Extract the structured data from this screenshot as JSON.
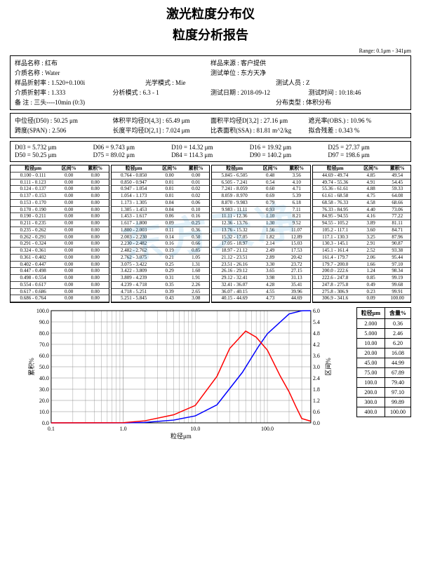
{
  "titles": {
    "main": "激光粒度分布仪",
    "sub": "粒度分析报告",
    "range": "Range: 0.1μm - 341μm"
  },
  "info1": {
    "r1": [
      "样品名称 : 红布",
      "样品来源 : 客户提供"
    ],
    "r2": [
      "介质名称 : Water",
      "测试单位 : 东方天净"
    ],
    "r3": [
      "样品折射率 : 1.520+0.100i",
      "光学模式 : Mie",
      "测试人员 : Z"
    ],
    "r4": [
      "介质折射率 : 1.333",
      "分析模式 : 6.3 - 1",
      "测试日期 : 2018-09-12",
      "测试时间 : 10:18:46"
    ],
    "r5": [
      "备    注 :   三头----10min  (0:3)",
      "分布类型 : 体积分布"
    ]
  },
  "info2": {
    "r1": [
      "中位径(D50) : 50.25    μm",
      "体积平均径D[4,3] : 65.49    μm",
      "面积平均径D[3,2] : 27.16    μm",
      "遮光率(OBS.) : 10.96 %"
    ],
    "r2": [
      "跨度(SPAN) : 2.506",
      "长度平均径D[2,1] : 7.024    μm",
      "比表面积(SSA) : 81.81  m^2/kg",
      "拟合残差 :  0.343  %"
    ]
  },
  "info3": {
    "r1": [
      "D03 = 5.732    μm",
      "D06 = 9.743    μm",
      "D10 = 14.32    μm",
      "D16 = 19.92    μm",
      "D25 = 27.37    μm"
    ],
    "r2": [
      "D50 = 50.25    μm",
      "D75 = 89.02    μm",
      "D84 = 114.3    μm",
      "D90 = 140.2    μm",
      "D97 = 198.6    μm"
    ]
  },
  "dist_headers": [
    "粒径μm",
    "区间%",
    "累积%"
  ],
  "dist_cols": [
    [
      [
        "0.100 - 0.111",
        "0.00",
        "0.00"
      ],
      [
        "0.111 - 0.123",
        "0.00",
        "0.00"
      ],
      [
        "0.124 - 0.137",
        "0.00",
        "0.00"
      ],
      [
        "0.137 - 0.153",
        "0.00",
        "0.00"
      ],
      [
        "0.153 - 0.170",
        "0.00",
        "0.00"
      ],
      [
        "0.170 - 0.190",
        "0.00",
        "0.00"
      ],
      [
        "0.190 - 0.211",
        "0.00",
        "0.00"
      ],
      [
        "0.211 - 0.235",
        "0.00",
        "0.00"
      ],
      [
        "0.235 - 0.262",
        "0.00",
        "0.00"
      ],
      [
        "0.262 - 0.291",
        "0.00",
        "0.00"
      ],
      [
        "0.291 - 0.324",
        "0.00",
        "0.00"
      ],
      [
        "0.324 - 0.361",
        "0.00",
        "0.00"
      ],
      [
        "0.361 - 0.402",
        "0.00",
        "0.00"
      ],
      [
        "0.402 - 0.447",
        "0.00",
        "0.00"
      ],
      [
        "0.447 - 0.498",
        "0.00",
        "0.00"
      ],
      [
        "0.498 - 0.554",
        "0.00",
        "0.00"
      ],
      [
        "0.554 - 0.617",
        "0.00",
        "0.00"
      ],
      [
        "0.617 - 0.686",
        "0.00",
        "0.00"
      ],
      [
        "0.686 - 0.764",
        "0.00",
        "0.00"
      ]
    ],
    [
      [
        "0.764 - 0.850",
        "0.00",
        "0.00"
      ],
      [
        "0.850 - 0.947",
        "0.01",
        "0.01"
      ],
      [
        "0.947 - 1.054",
        "0.01",
        "0.02"
      ],
      [
        "1.054 - 1.173",
        "0.01",
        "0.02"
      ],
      [
        "1.173 - 1.305",
        "0.04",
        "0.06"
      ],
      [
        "1.305 - 1.453",
        "0.04",
        "0.10"
      ],
      [
        "1.453 - 1.617",
        "0.06",
        "0.16"
      ],
      [
        "1.617 - 1.800",
        "0.09",
        "0.25"
      ],
      [
        "1.800 - 2.003",
        "0.11",
        "0.36"
      ],
      [
        "2.003 - 2.230",
        "0.14",
        "0.50"
      ],
      [
        "2.230 - 2.482",
        "0.16",
        "0.66"
      ],
      [
        "2.482 - 2.762",
        "0.19",
        "0.85"
      ],
      [
        "2.762 - 3.075",
        "0.21",
        "1.05"
      ],
      [
        "3.075 - 3.422",
        "0.25",
        "1.31"
      ],
      [
        "3.422 - 3.809",
        "0.29",
        "1.60"
      ],
      [
        "3.809 - 4.239",
        "0.31",
        "1.91"
      ],
      [
        "4.239 - 4.718",
        "0.35",
        "2.26"
      ],
      [
        "4.718 - 5.251",
        "0.39",
        "2.65"
      ],
      [
        "5.251 - 5.845",
        "0.43",
        "3.08"
      ]
    ],
    [
      [
        "5.845 - 6.505",
        "0.48",
        "3.56"
      ],
      [
        "6.505 - 7.241",
        "0.54",
        "4.10"
      ],
      [
        "7.241 - 8.059",
        "0.60",
        "4.71"
      ],
      [
        "8.059 - 8.970",
        "0.69",
        "5.39"
      ],
      [
        "8.870 - 9.983",
        "0.79",
        "6.18"
      ],
      [
        "9.983 - 11.11",
        "0.93",
        "7.11"
      ],
      [
        "11.11 - 12.36",
        "1.10",
        "8.21"
      ],
      [
        "12.36 - 13.76",
        "1.30",
        "9.52"
      ],
      [
        "13.76 - 15.32",
        "1.56",
        "11.07"
      ],
      [
        "15.32 - 17.05",
        "1.82",
        "12.89"
      ],
      [
        "17.05 - 18.97",
        "2.14",
        "15.03"
      ],
      [
        "18.97 - 21.12",
        "2.49",
        "17.53"
      ],
      [
        "21.12 - 23.51",
        "2.89",
        "20.42"
      ],
      [
        "23.51 - 26.16",
        "3.30",
        "23.72"
      ],
      [
        "26.16 - 29.12",
        "3.65",
        "27.15"
      ],
      [
        "29.12 - 32.41",
        "3.98",
        "31.13"
      ],
      [
        "32.41 - 36.07",
        "4.28",
        "35.41"
      ],
      [
        "36.07 - 40.15",
        "4.55",
        "39.96"
      ],
      [
        "40.15 - 44.69",
        "4.73",
        "44.69"
      ]
    ],
    [
      [
        "44.69 - 49.74",
        "4.85",
        "49.54"
      ],
      [
        "49.74 - 55.36",
        "4.91",
        "54.45"
      ],
      [
        "55.36 - 61.61",
        "4.88",
        "59.33"
      ],
      [
        "61.61 - 68.58",
        "4.75",
        "64.08"
      ],
      [
        "68.58 - 76.33",
        "4.58",
        "68.66"
      ],
      [
        "76.33 - 84.95",
        "4.40",
        "73.06"
      ],
      [
        "84.95 - 94.55",
        "4.16",
        "77.22"
      ],
      [
        "94.55 - 105.2",
        "3.89",
        "81.11"
      ],
      [
        "105.2 - 117.1",
        "3.60",
        "84.71"
      ],
      [
        "117.1 - 130.3",
        "3.25",
        "87.96"
      ],
      [
        "130.3 - 145.1",
        "2.91",
        "90.87"
      ],
      [
        "145.1 - 161.4",
        "2.52",
        "93.38"
      ],
      [
        "161.4 - 179.7",
        "2.06",
        "95.44"
      ],
      [
        "179.7 - 200.0",
        "1.66",
        "97.10"
      ],
      [
        "200.0 - 222.6",
        "1.24",
        "98.34"
      ],
      [
        "222.6 - 247.8",
        "0.85",
        "99.19"
      ],
      [
        "247.8 - 275.8",
        "0.49",
        "99.68"
      ],
      [
        "275.8 - 306.9",
        "0.23",
        "99.91"
      ],
      [
        "306.9 - 341.6",
        "0.09",
        "100.00"
      ]
    ]
  ],
  "chart": {
    "xlabel": "粒径μm",
    "ylabel_left": "累积%",
    "ylabel_right": "区间%",
    "xticks": [
      "0.1",
      "1.0",
      "10.0",
      "100.0"
    ],
    "ylticks": [
      0,
      10,
      20,
      30,
      40,
      50,
      60,
      70,
      80,
      90,
      100
    ],
    "yrticks": [
      0,
      0.6,
      1.2,
      1.8,
      2.4,
      3.0,
      3.6,
      4.2,
      4.8,
      5.4,
      6.0
    ],
    "cum_color": "#0000ff",
    "dist_color": "#ff0000",
    "grid_color": "#888",
    "cum_curve": [
      [
        0.1,
        0
      ],
      [
        1,
        0.01
      ],
      [
        2,
        0.36
      ],
      [
        5,
        2.46
      ],
      [
        10,
        6.2
      ],
      [
        20,
        16.08
      ],
      [
        45,
        44.99
      ],
      [
        75,
        67.89
      ],
      [
        100,
        79.4
      ],
      [
        200,
        97.1
      ],
      [
        300,
        99.89
      ],
      [
        400,
        100
      ]
    ],
    "dist_curve": [
      [
        0.1,
        0
      ],
      [
        1,
        0.01
      ],
      [
        2,
        0.11
      ],
      [
        5,
        0.43
      ],
      [
        10,
        0.93
      ],
      [
        20,
        2.49
      ],
      [
        30,
        3.98
      ],
      [
        50,
        4.91
      ],
      [
        70,
        4.58
      ],
      [
        100,
        3.89
      ],
      [
        150,
        2.52
      ],
      [
        200,
        1.66
      ],
      [
        250,
        0.85
      ],
      [
        300,
        0.23
      ],
      [
        400,
        0.09
      ]
    ]
  },
  "pct_table": {
    "headers": [
      "粒径μm",
      "含量%"
    ],
    "rows": [
      [
        "2.000",
        "0.36"
      ],
      [
        "5.000",
        "2.46"
      ],
      [
        "10.00",
        "6.20"
      ],
      [
        "20.00",
        "16.08"
      ],
      [
        "45.00",
        "44.99"
      ],
      [
        "75.00",
        "67.89"
      ],
      [
        "100.0",
        "79.40"
      ],
      [
        "200.0",
        "97.10"
      ],
      [
        "300.0",
        "99.89"
      ],
      [
        "400.0",
        "100.00"
      ]
    ]
  }
}
